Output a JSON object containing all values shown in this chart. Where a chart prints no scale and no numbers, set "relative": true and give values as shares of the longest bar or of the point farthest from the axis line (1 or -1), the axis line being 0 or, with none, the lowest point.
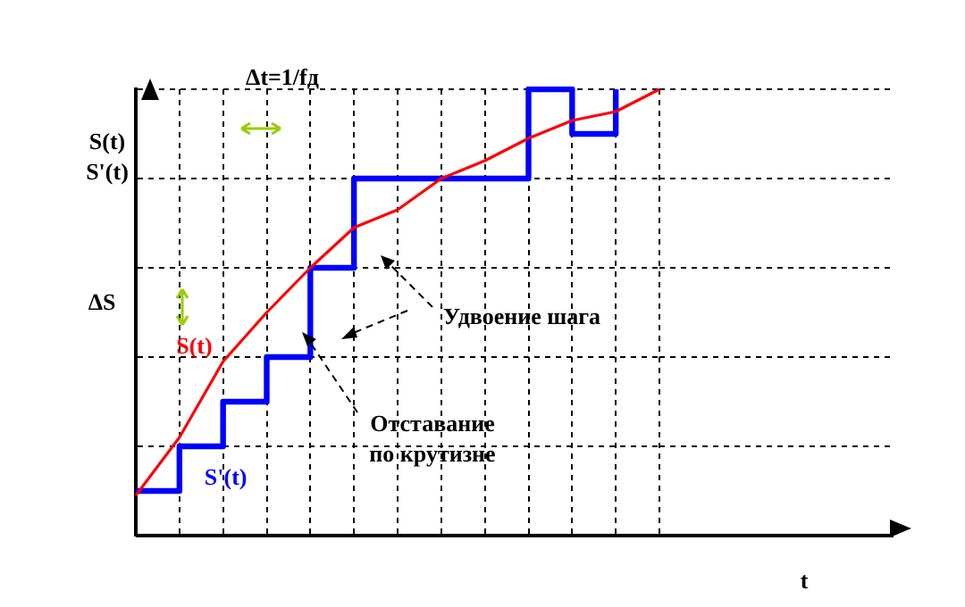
{
  "chart_data": {
    "type": "step",
    "relative": true,
    "ylabel": "S(t)\nS'(t)",
    "grid": true,
    "tick_labels": false,
    "legend": false,
    "annotations": [
      "Δt=1/fд",
      "ΔS",
      "Удвоение шага",
      "Отставание\nпо крутизне",
      "t"
    ],
    "categories": [
      null,
      null,
      null,
      null,
      null,
      null,
      null,
      null,
      null,
      null,
      null,
      null,
      null
    ],
    "series": [
      {
        "name": "S(t)",
        "type": "line",
        "color": "#ff0000",
        "values": [
          0.09,
          0.22,
          0.39,
          0.5,
          0.6,
          0.69,
          0.73,
          0.8,
          0.84,
          0.89,
          0.93,
          0.95,
          1.0
        ]
      },
      {
        "name": "S'(t)",
        "type": "step",
        "color": "#0000ff",
        "values": [
          0.1,
          0.2,
          0.3,
          0.4,
          0.6,
          0.8,
          0.8,
          0.8,
          0.8,
          1.0,
          0.9,
          1.0,
          null
        ]
      }
    ]
  }
}
